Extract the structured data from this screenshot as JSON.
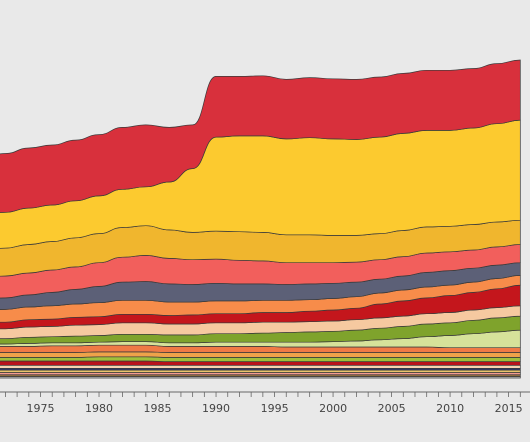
{
  "chart_data": {
    "type": "area",
    "style": "bump-streamgraph",
    "title": "",
    "xlabel": "",
    "ylabel": "",
    "legend": "none",
    "grid": false,
    "x_range": [
      1970,
      2017
    ],
    "x_ticks": [
      1975,
      1980,
      1985,
      1990,
      1995,
      2000,
      2005,
      2010,
      2015
    ],
    "x_tick_labels": [
      "1975",
      "1980",
      "1985",
      "1990",
      "1995",
      "2000",
      "2005",
      "2010",
      "2015"
    ],
    "years": [
      1970,
      1972,
      1974,
      1976,
      1978,
      1980,
      1982,
      1984,
      1986,
      1988,
      1990,
      1992,
      1994,
      1996,
      1998,
      2000,
      2002,
      2004,
      2006,
      2008,
      2010,
      2012,
      2014,
      2016
    ],
    "series": [
      {
        "color": "#d8303c",
        "values": [
          9.5,
          9.7,
          9.9,
          9.9,
          10.0,
          10.1,
          10.2,
          10.2,
          9.0,
          7.2,
          10.0,
          9.8,
          9.9,
          9.8,
          9.9,
          9.9,
          9.9,
          9.9,
          9.9,
          9.9,
          9.9,
          9.8,
          9.9,
          9.9
        ]
      },
      {
        "color": "#fcca2f",
        "values": [
          5.8,
          5.9,
          6.0,
          6.0,
          6.1,
          6.2,
          6.3,
          6.4,
          7.9,
          10.5,
          15.5,
          15.8,
          15.9,
          15.8,
          16.0,
          15.9,
          15.8,
          15.9,
          16.0,
          15.9,
          15.8,
          15.9,
          16.2,
          16.5
        ]
      },
      {
        "color": "#f0b62e",
        "values": [
          4.6,
          4.6,
          4.7,
          4.7,
          4.8,
          4.8,
          4.9,
          4.9,
          4.7,
          4.5,
          4.6,
          4.7,
          4.7,
          4.6,
          4.6,
          4.5,
          4.4,
          4.3,
          4.3,
          4.3,
          4.2,
          4.2,
          4.1,
          4.0
        ]
      },
      {
        "color": "#f25f5c",
        "values": [
          3.5,
          3.6,
          3.6,
          3.7,
          3.7,
          3.9,
          4.1,
          4.3,
          4.2,
          4.1,
          4.0,
          3.9,
          3.8,
          3.6,
          3.5,
          3.4,
          3.3,
          3.2,
          3.2,
          3.2,
          3.1,
          3.0,
          3.0,
          3.0
        ]
      },
      {
        "color": "#5c6077",
        "values": [
          1.8,
          1.9,
          2.0,
          2.2,
          2.4,
          2.7,
          3.0,
          3.1,
          3.0,
          2.9,
          2.9,
          2.8,
          2.7,
          2.6,
          2.6,
          2.5,
          2.4,
          2.3,
          2.3,
          2.4,
          2.4,
          2.3,
          2.2,
          2.1
        ]
      },
      {
        "color": "#f78c4a",
        "values": [
          2.0,
          2.1,
          2.1,
          2.2,
          2.2,
          2.3,
          2.3,
          2.3,
          2.2,
          2.1,
          2.1,
          2.1,
          2.0,
          2.0,
          1.9,
          1.9,
          1.9,
          1.8,
          1.8,
          1.8,
          1.7,
          1.7,
          1.7,
          1.6
        ]
      },
      {
        "color": "#c4161c",
        "values": [
          1.1,
          1.1,
          1.2,
          1.2,
          1.3,
          1.3,
          1.4,
          1.4,
          1.4,
          1.5,
          1.5,
          1.5,
          1.6,
          1.6,
          1.7,
          1.8,
          1.9,
          2.3,
          2.5,
          2.6,
          2.8,
          2.9,
          3.1,
          3.4
        ]
      },
      {
        "color": "#f6c9a0",
        "values": [
          1.6,
          1.6,
          1.7,
          1.7,
          1.8,
          1.8,
          1.9,
          1.9,
          1.8,
          1.8,
          1.8,
          1.8,
          1.8,
          1.7,
          1.7,
          1.7,
          1.7,
          1.7,
          1.7,
          1.7,
          1.7,
          1.7,
          1.7,
          1.7
        ]
      },
      {
        "color": "#7fa32c",
        "values": [
          0.9,
          0.9,
          1.0,
          1.0,
          1.1,
          1.1,
          1.2,
          1.2,
          1.3,
          1.3,
          1.4,
          1.4,
          1.5,
          1.6,
          1.7,
          1.7,
          1.8,
          1.9,
          2.0,
          2.1,
          2.1,
          2.2,
          2.3,
          2.3
        ]
      },
      {
        "color": "#d6e29a",
        "values": [
          0.4,
          0.4,
          0.5,
          0.5,
          0.5,
          0.5,
          0.6,
          0.6,
          0.6,
          0.6,
          0.7,
          0.7,
          0.7,
          0.8,
          0.8,
          0.9,
          1.0,
          1.2,
          1.4,
          1.7,
          2.0,
          2.3,
          2.6,
          2.9
        ]
      },
      {
        "color": "#ef7a45",
        "values": [
          1.0,
          1.0,
          1.0,
          1.1,
          1.1,
          1.1,
          1.1,
          1.1,
          1.0,
          1.0,
          1.0,
          1.0,
          1.0,
          0.9,
          0.9,
          0.9,
          0.9,
          0.9,
          0.9,
          0.9,
          0.8,
          0.8,
          0.8,
          0.8
        ]
      },
      {
        "color": "#eea24a",
        "values": [
          0.8,
          0.8,
          0.8,
          0.8,
          0.8,
          0.8,
          0.8,
          0.8,
          0.8,
          0.8,
          0.8,
          0.8,
          0.8,
          0.8,
          0.8,
          0.8,
          0.8,
          0.8,
          0.8,
          0.8,
          0.8,
          0.8,
          0.8,
          0.8
        ]
      },
      {
        "color": "#9fbf3b",
        "values": [
          0.6,
          0.6,
          0.6,
          0.6,
          0.6,
          0.7,
          0.7,
          0.7,
          0.7,
          0.7,
          0.7,
          0.7,
          0.7,
          0.7,
          0.7,
          0.7,
          0.7,
          0.7,
          0.7,
          0.7,
          0.7,
          0.7,
          0.7,
          0.7
        ]
      },
      {
        "color": "#b8121b",
        "values": [
          0.7,
          0.7,
          0.7,
          0.7,
          0.7,
          0.7,
          0.7,
          0.7,
          0.6,
          0.6,
          0.6,
          0.6,
          0.6,
          0.6,
          0.6,
          0.6,
          0.6,
          0.6,
          0.6,
          0.6,
          0.6,
          0.6,
          0.6,
          0.6
        ]
      },
      {
        "color": "#f7d3b0",
        "values": [
          0.5,
          0.5,
          0.5,
          0.5,
          0.5,
          0.5,
          0.5,
          0.5,
          0.5,
          0.5,
          0.5,
          0.5,
          0.5,
          0.5,
          0.5,
          0.5,
          0.5,
          0.5,
          0.5,
          0.5,
          0.5,
          0.5,
          0.5,
          0.5
        ]
      },
      {
        "color": "#2e3a6e",
        "values": [
          0.3,
          0.3,
          0.3,
          0.3,
          0.3,
          0.3,
          0.3,
          0.3,
          0.3,
          0.3,
          0.3,
          0.3,
          0.3,
          0.3,
          0.3,
          0.3,
          0.3,
          0.3,
          0.3,
          0.3,
          0.3,
          0.3,
          0.3,
          0.3
        ]
      },
      {
        "color": "#e8c46a",
        "values": [
          0.4,
          0.4,
          0.4,
          0.4,
          0.4,
          0.4,
          0.4,
          0.4,
          0.4,
          0.4,
          0.4,
          0.4,
          0.4,
          0.4,
          0.4,
          0.4,
          0.4,
          0.4,
          0.4,
          0.4,
          0.4,
          0.4,
          0.4,
          0.4
        ]
      },
      {
        "color": "#f59b8f",
        "values": [
          0.35,
          0.35,
          0.35,
          0.35,
          0.35,
          0.35,
          0.35,
          0.35,
          0.35,
          0.35,
          0.35,
          0.35,
          0.35,
          0.35,
          0.35,
          0.35,
          0.35,
          0.35,
          0.35,
          0.35,
          0.35,
          0.35,
          0.35,
          0.35
        ]
      },
      {
        "color": "#8b6b3e",
        "values": [
          0.3,
          0.3,
          0.3,
          0.3,
          0.3,
          0.3,
          0.3,
          0.3,
          0.3,
          0.3,
          0.3,
          0.3,
          0.3,
          0.3,
          0.3,
          0.3,
          0.3,
          0.3,
          0.3,
          0.3,
          0.3,
          0.3,
          0.3,
          0.3
        ]
      },
      {
        "color": "#c9c9c9",
        "values": [
          0.25,
          0.25,
          0.25,
          0.25,
          0.25,
          0.25,
          0.25,
          0.25,
          0.25,
          0.25,
          0.25,
          0.25,
          0.25,
          0.25,
          0.25,
          0.25,
          0.25,
          0.25,
          0.25,
          0.25,
          0.25,
          0.25,
          0.25,
          0.25
        ]
      }
    ]
  }
}
